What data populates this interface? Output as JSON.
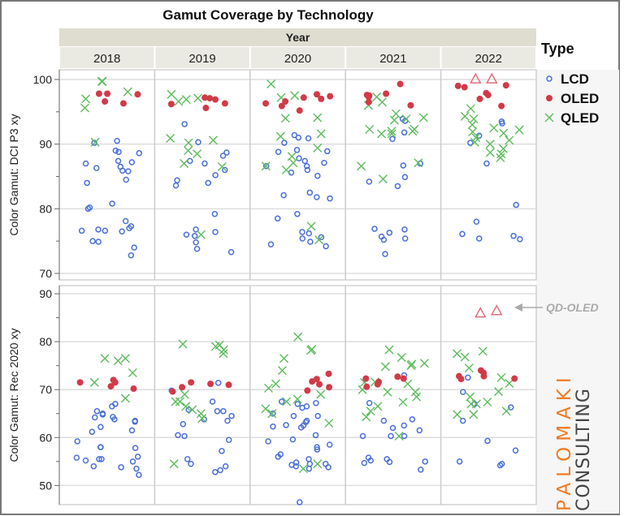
{
  "chart_data": {
    "type": "scatter",
    "title": "Gamut Coverage by Technology",
    "facet_label": "Year",
    "columns": [
      "2018",
      "2019",
      "2020",
      "2021",
      "2022"
    ],
    "legend": {
      "title": "Type",
      "placement": "right",
      "entries": [
        "LCD",
        "OLED",
        "QLED"
      ]
    },
    "colors": {
      "LCD": "#4a6fd8",
      "OLED": "#d23a48",
      "QLED": "#5dbb5d",
      "QD-OLED": "#e0707c"
    },
    "markers": {
      "LCD": "open-circle",
      "OLED": "filled-circle",
      "QLED": "x",
      "QD-OLED": "open-triangle"
    },
    "annotation": "QD-OLED",
    "x_jitter": true,
    "grid": true,
    "panels": [
      {
        "ylabel": "Color Gamut: DCI P3 xy",
        "ylim": [
          69,
          101.5
        ],
        "yticks": [
          70,
          80,
          90,
          100
        ],
        "data": {
          "2018": {
            "LCD": [
              90.5,
              90.2,
              89,
              88.6,
              88.8,
              87.4,
              87,
              87.2,
              86.5,
              85.8,
              85.9,
              86.3,
              84.5,
              84.0,
              80.8,
              80.2,
              80.0,
              78.1,
              77.3,
              77.0,
              76.6,
              76.6,
              76.5,
              76.8,
              75,
              74.9,
              74.0,
              72.8
            ],
            "OLED": [
              97.8,
              97.8,
              97.7,
              96.6,
              96.3
            ],
            "QLED": [
              99.7,
              99.7,
              98.1,
              97.0,
              95.6,
              90.3
            ]
          },
          "2019": {
            "LCD": [
              93.1,
              90.3,
              88.7,
              88.2,
              87.4,
              87,
              86,
              85.2,
              84.4,
              84.0,
              83.6,
              79.2,
              76.8,
              76.4,
              76,
              75.8,
              74.8,
              73.8,
              73.3
            ],
            "OLED": [
              97.2,
              96.3,
              97.1,
              96.9,
              96.2,
              95.6
            ],
            "QLED": [
              97.1,
              97.7,
              96.9,
              96.6,
              90.6,
              90.9,
              90.2,
              89,
              88.5,
              87,
              86.5,
              76
            ]
          },
          "2020": {
            "LCD": [
              91.4,
              91.0,
              90.9,
              90.2,
              89.1,
              88.9,
              88.8,
              87.8,
              87.1,
              87.4,
              86.6,
              86.6,
              86.0,
              85.6,
              85.1,
              82.5,
              82.1,
              81.8,
              81.6,
              79.2,
              78.5,
              76.4,
              76.2,
              75.6,
              75.4,
              74.9,
              74.5,
              74.2
            ],
            "OLED": [
              97.7,
              97.4,
              97.2,
              97.0,
              96.6,
              96.3,
              95.9,
              95.2
            ],
            "QLED": [
              99.3,
              97.2,
              97.5,
              94.1,
              94.0,
              91.6,
              91.2,
              89.4,
              88.1,
              87.1,
              86.6,
              86.0,
              77.3,
              75.2
            ]
          },
          "2021": {
            "LCD": [
              93.9,
              93.6,
              91.8,
              90.8,
              86.7,
              87.0,
              84.9,
              84.2,
              83.5,
              76.9,
              76.8,
              76.3,
              75.7,
              75.4,
              75.2,
              73.0
            ],
            "OLED": [
              99.3,
              97.8,
              97.6,
              97.5,
              97.3,
              96.5,
              96.0
            ],
            "QLED": [
              97.3,
              96.5,
              96.0,
              94.7,
              94.1,
              93.9,
              93.7,
              92.3,
              92.0,
              91.6,
              92.0,
              91.6,
              92.3,
              87.1,
              84.6,
              86.6
            ]
          },
          "2022": {
            "LCD": [
              93.2,
              93.5,
              91.3,
              90.2,
              87.0,
              80.6,
              78.0,
              76.1,
              75.8,
              75.4,
              75.3
            ],
            "OLED": [
              99.1,
              99.0,
              98.8,
              97.6,
              97.9,
              97.0,
              95.9
            ],
            "QLED": [
              95.5,
              93.0,
              92.5,
              92.2,
              91.9,
              91.7,
              91.0,
              90.6,
              90.3,
              90.0,
              89.3,
              88.7,
              88.5,
              87.9,
              93.9,
              94.3
            ],
            "QD-OLED": [
              100.1,
              100.1
            ]
          }
        }
      },
      {
        "ylabel": "Color Gamut: Rec 2020 xy",
        "ylim": [
          46,
          91.7
        ],
        "yticks": [
          50,
          60,
          70,
          80,
          90
        ],
        "data": {
          "2018": {
            "LCD": [
              67,
              66.5,
              65.5,
              65,
              64.8,
              64.3,
              64.2,
              63.5,
              63.3,
              63.8,
              62.2,
              61.5,
              61.2,
              59.2,
              58,
              58,
              57.8,
              56,
              55.8,
              55.5,
              55.5,
              55.2,
              55,
              54,
              53.5,
              53.8,
              52.2
            ],
            "OLED": [
              72,
              71.5,
              70.7,
              71.5,
              70.2
            ],
            "QLED": [
              76.5,
              76.5,
              76,
              73.5,
              71.5,
              68.2
            ]
          },
          "2019": {
            "LCD": [
              71.4,
              69.8,
              67.5,
              65.8,
              65.5,
              65.5,
              64.5,
              63.8,
              63.5,
              62.8,
              60.5,
              60.3,
              59.5,
              57.2,
              55.5,
              54.5,
              54,
              53.2,
              52.8
            ],
            "OLED": [
              71.5,
              71.2,
              71,
              70.5,
              69.6
            ],
            "QLED": [
              79,
              79.5,
              78.3,
              77.5,
              79.3,
              69,
              67.5,
              67.5,
              66.5,
              65.8,
              65,
              64,
              54.5
            ]
          },
          "2020": {
            "LCD": [
              67.5,
              67.2,
              67.0,
              66.5,
              66.2,
              65,
              64.5,
              64.5,
              63.5,
              63.2,
              62.6,
              62.3,
              62.5,
              62.1,
              60.5,
              59.6,
              59.2,
              58.5,
              58.0,
              57.5,
              56.5,
              56,
              55.5,
              54.5,
              54.3,
              54.0,
              53.8,
              53.5,
              54.8,
              54.5,
              46.5
            ],
            "OLED": [
              73.3,
              72.2,
              71.7,
              71.1,
              70.5,
              69.8
            ],
            "QLED": [
              81,
              78.2,
              78.4,
              76.5,
              74,
              70.3,
              71.2,
              69,
              68,
              67.5,
              66,
              65,
              63,
              54.5,
              53.5
            ]
          },
          "2021": {
            "LCD": [
              73,
              67.2,
              63.8,
              63.5,
              62.5,
              62.0,
              61.5,
              60.3,
              60.3,
              60.3,
              55.8,
              55.2,
              55.0,
              55.5,
              54.9,
              54.7,
              53.3
            ],
            "OLED": [
              72.7,
              72.3,
              72.3,
              71.6,
              71.1,
              70.6
            ],
            "QLED": [
              78.3,
              76.7,
              75.5,
              75.3,
              75.0,
              74.8,
              71.6,
              71.2,
              71.5,
              70,
              69.5,
              69.5,
              68.5,
              67.4,
              66.5,
              65.5,
              64.3,
              60.3
            ]
          },
          "2022": {
            "LCD": [
              72.5,
              69.5,
              67.0,
              66.3,
              63.5,
              59.3,
              57.3,
              55.0,
              54.5,
              54.2
            ],
            "OLED": [
              74.0,
              73.5,
              72.8,
              72.2,
              72.8,
              72.3
            ],
            "QLED": [
              78.0,
              77.5,
              76.8,
              74.5,
              72.5,
              71.3,
              69.6,
              68.5,
              67.4,
              67.0,
              65.5,
              64.8,
              64.8,
              67.0
            ],
            "QD-OLED": [
              86.0,
              86.5
            ]
          }
        }
      }
    ]
  },
  "logo": {
    "line1": "PALOMAKI",
    "line2": "CONSULTING"
  }
}
